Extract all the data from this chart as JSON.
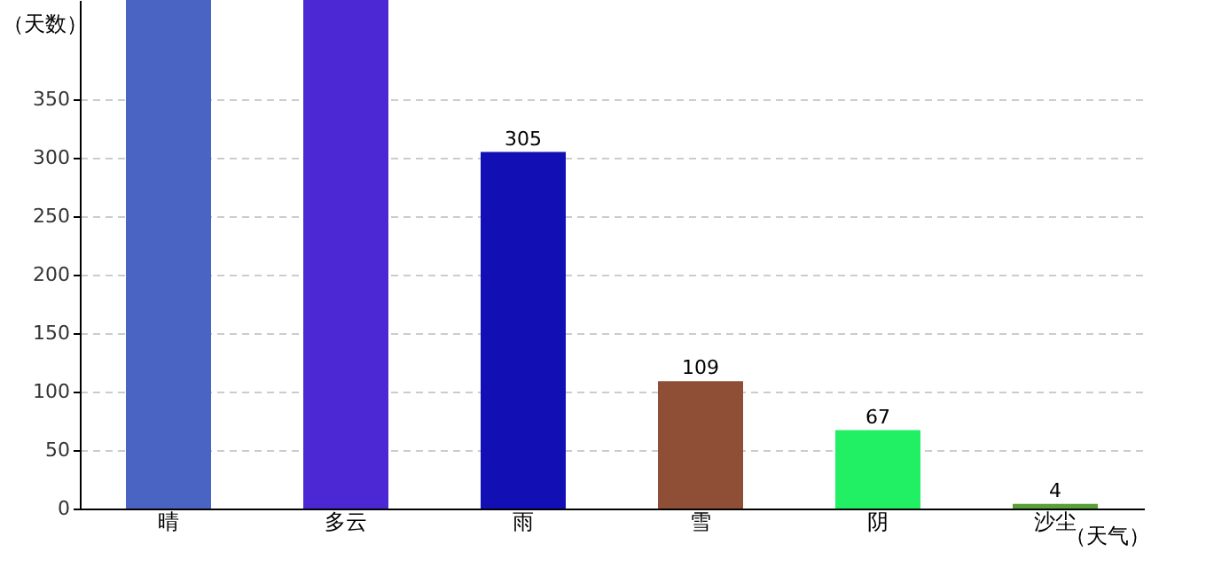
{
  "chart_data": {
    "type": "bar",
    "xlabel": "（天气）",
    "ylabel": "（天数）",
    "categories": [
      "晴",
      "多云",
      "雨",
      "雪",
      "阴",
      "沙尘"
    ],
    "values": [
      435,
      435,
      305,
      109,
      67,
      4
    ],
    "value_labels": [
      null,
      null,
      "305",
      "109",
      "67",
      "4"
    ],
    "colors": [
      "#4a64c4",
      "#4c28d4",
      "#1210b4",
      "#8e4f36",
      "#22f064",
      "#5aa03a"
    ],
    "ylim": [
      0,
      435
    ],
    "yticks": [
      0,
      50,
      100,
      150,
      200,
      250,
      300,
      350
    ],
    "grid": "y"
  }
}
